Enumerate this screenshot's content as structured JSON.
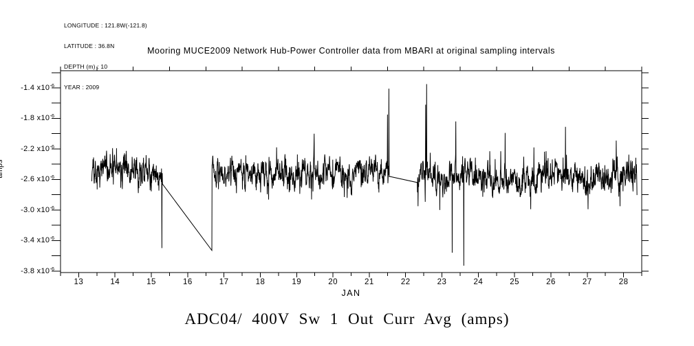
{
  "meta": {
    "lines": [
      "LONGITUDE : 121.8W(-121.8)",
      "LATITUDE : 36.8N",
      "DEPTH (m) : 10",
      "YEAR : 2009"
    ]
  },
  "title": "Mooring MUCE2009 Network Hub-Power Controller data from MBARI at original sampling intervals",
  "bottom_title": "ADC04/ 400V Sw 1 Out Curr Avg (amps)",
  "chart_data": {
    "type": "line",
    "title": "Mooring MUCE2009 Network Hub-Power Controller data from MBARI at original sampling intervals",
    "subtitle": "ADC04/ 400V Sw 1 Out Curr Avg (amps)",
    "xlabel": "JAN",
    "ylabel": "amps",
    "grid": false,
    "legend": "none",
    "line_color": "#000000",
    "background_color": "#ffffff",
    "xlim": [
      12.5,
      28.5
    ],
    "ylim_amps": [
      -3.82e-06,
      -1.175e-06
    ],
    "x_major_ticks": [
      13,
      14,
      15,
      16,
      17,
      18,
      19,
      20,
      21,
      22,
      23,
      24,
      25,
      26,
      27,
      28
    ],
    "x_tick_labels": [
      "13",
      "14",
      "15",
      "16",
      "17",
      "18",
      "19",
      "20",
      "21",
      "22",
      "23",
      "24",
      "25",
      "26",
      "27",
      "28"
    ],
    "x_minor_step": 0.5,
    "y_major_ticks_amps": [
      -1.4e-06,
      -1.8e-06,
      -2.2e-06,
      -2.6e-06,
      -3e-06,
      -3.4e-06,
      -3.8e-06
    ],
    "y_tick_labels": [
      {
        "base": "-1.4 x10",
        "sup": "-6"
      },
      {
        "base": "-1.8 x10",
        "sup": "-6"
      },
      {
        "base": "-2.2 x10",
        "sup": "-6"
      },
      {
        "base": "-2.6 x10",
        "sup": "-6"
      },
      {
        "base": "-3.0 x10",
        "sup": "-6"
      },
      {
        "base": "-3.4 x10",
        "sup": "-6"
      },
      {
        "base": "-3.8 x10",
        "sup": "-6"
      }
    ],
    "y_minor_step_amps": 2e-07,
    "series": [
      {
        "name": "ADC04/ 400V Sw 1 Out Curr Avg",
        "units": "amps",
        "sample_step_days": 0.0055,
        "seed": 11,
        "segments": [
          {
            "x0": 13.36,
            "x1": 15.31,
            "mean": -2.53e-06,
            "sigma": 8.5e-08,
            "end_value": -2.66e-06,
            "bridge_after": [
              [
                16.666,
                -3.53e-06
              ]
            ]
          },
          {
            "x0": 16.672,
            "x1": 21.56,
            "mean": -2.5e-06,
            "sigma": 8.5e-08,
            "end_value": -2.56e-06,
            "bridge_after": []
          },
          {
            "x0": 22.32,
            "x1": 28.37,
            "mean": -2.57e-06,
            "sigma": 9e-08,
            "start_value": -2.64e-06,
            "bridge_after": []
          }
        ],
        "spikes": [
          [
            15.29,
            -3.5e-06
          ],
          [
            19.48,
            -2e-06
          ],
          [
            21.5,
            -1.75e-06
          ],
          [
            21.54,
            -1.41e-06
          ],
          [
            22.55,
            -1.62e-06
          ],
          [
            22.58,
            -1.35e-06
          ],
          [
            22.94,
            -3e-06
          ],
          [
            23.28,
            -3.56e-06
          ],
          [
            23.38,
            -1.84e-06
          ],
          [
            23.6,
            -3.73e-06
          ],
          [
            24.74,
            -1.99e-06
          ],
          [
            25.53,
            -2.18e-06
          ],
          [
            26.4,
            -1.91e-06
          ],
          [
            27.8,
            -2.09e-06
          ]
        ],
        "band_clip_amps": {
          "below_mean": 4.2e-07,
          "above_mean": 3.4e-07
        }
      }
    ]
  }
}
